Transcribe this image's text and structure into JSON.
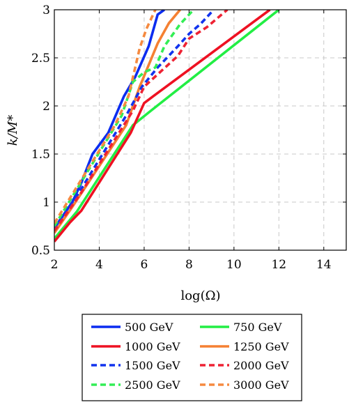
{
  "chart_data": {
    "type": "line",
    "title": "",
    "xlabel": "log(Ω)",
    "ylabel": "k/M*",
    "xlim": [
      2,
      15
    ],
    "ylim": [
      0.5,
      3
    ],
    "xticks": [
      2,
      4,
      6,
      8,
      10,
      12,
      14
    ],
    "yticks": [
      0.5,
      1,
      1.5,
      2,
      2.5,
      3
    ],
    "xtick_labels": [
      "2",
      "4",
      "6",
      "8",
      "10",
      "12",
      "14"
    ],
    "ytick_labels": [
      "0.5",
      "1",
      "1.5",
      "2",
      "2.5",
      "3"
    ],
    "grid": true,
    "legend_position": "bottom",
    "series": [
      {
        "name": "500 GeV",
        "color": "#0b2cf0",
        "dash": "solid",
        "points": [
          [
            2.0,
            0.73
          ],
          [
            2.8,
            1.0
          ],
          [
            3.2,
            1.2
          ],
          [
            3.7,
            1.5
          ],
          [
            4.4,
            1.72
          ],
          [
            5.1,
            2.1
          ],
          [
            5.6,
            2.3
          ],
          [
            6.2,
            2.62
          ],
          [
            6.6,
            2.95
          ],
          [
            6.9,
            3.0
          ]
        ]
      },
      {
        "name": "750 GeV",
        "color": "#22ee44",
        "dash": "solid",
        "points": [
          [
            2.0,
            0.62
          ],
          [
            3.0,
            0.9
          ],
          [
            5.5,
            1.8
          ],
          [
            6.3,
            1.95
          ],
          [
            12.0,
            3.0
          ]
        ]
      },
      {
        "name": "1000 GeV",
        "color": "#ee1122",
        "dash": "solid",
        "points": [
          [
            2.0,
            0.59
          ],
          [
            2.7,
            0.79
          ],
          [
            3.2,
            0.91
          ],
          [
            5.4,
            1.72
          ],
          [
            6.0,
            2.03
          ],
          [
            6.4,
            2.1
          ],
          [
            11.6,
            3.0
          ]
        ]
      },
      {
        "name": "1250 GeV",
        "color": "#f58032",
        "dash": "solid",
        "points": [
          [
            2.0,
            0.68
          ],
          [
            2.8,
            0.95
          ],
          [
            5.2,
            1.8
          ],
          [
            5.8,
            2.2
          ],
          [
            6.6,
            2.65
          ],
          [
            7.1,
            2.86
          ],
          [
            7.6,
            3.0
          ]
        ]
      },
      {
        "name": "1500 GeV",
        "color": "#1133ee",
        "dash": "dashed",
        "points": [
          [
            2.0,
            0.73
          ],
          [
            3.1,
            1.1
          ],
          [
            5.2,
            1.9
          ],
          [
            5.9,
            2.2
          ],
          [
            6.6,
            2.4
          ],
          [
            7.5,
            2.62
          ],
          [
            8.0,
            2.75
          ],
          [
            8.5,
            2.85
          ],
          [
            9.1,
            3.0
          ]
        ]
      },
      {
        "name": "2000 GeV",
        "color": "#ee2233",
        "dash": "dashed",
        "points": [
          [
            2.0,
            0.7
          ],
          [
            3.2,
            1.1
          ],
          [
            5.5,
            1.95
          ],
          [
            6.0,
            2.2
          ],
          [
            7.5,
            2.52
          ],
          [
            8.0,
            2.7
          ],
          [
            8.8,
            2.82
          ],
          [
            9.7,
            3.0
          ]
        ]
      },
      {
        "name": "2500 GeV",
        "color": "#33ee55",
        "dash": "dashed",
        "points": [
          [
            2.0,
            0.75
          ],
          [
            5.0,
            1.9
          ],
          [
            5.5,
            2.25
          ],
          [
            6.0,
            2.35
          ],
          [
            6.5,
            2.4
          ],
          [
            6.9,
            2.62
          ],
          [
            7.6,
            2.85
          ],
          [
            8.2,
            3.0
          ]
        ]
      },
      {
        "name": "3000 GeV",
        "color": "#f58a40",
        "dash": "dashed",
        "points": [
          [
            2.0,
            0.78
          ],
          [
            4.7,
            1.8
          ],
          [
            5.3,
            2.1
          ],
          [
            5.8,
            2.6
          ],
          [
            6.1,
            2.8
          ],
          [
            6.5,
            3.0
          ]
        ]
      }
    ],
    "legend_columns": 2
  }
}
